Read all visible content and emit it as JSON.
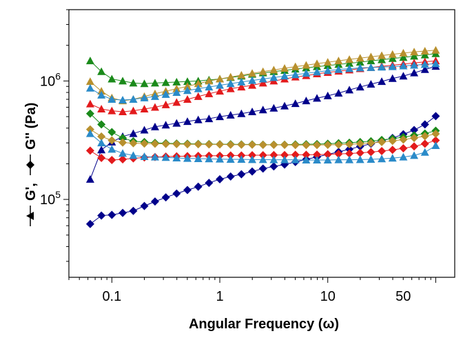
{
  "chart_data": {
    "type": "scatter",
    "xlabel": "Angular Frequency (ω)",
    "ylabel_parts": {
      "g_prime": "G',",
      "g_double_prime": "G'' (Pa)"
    },
    "x_scale": "log",
    "y_scale": "log",
    "xlim": [
      0.04,
      150
    ],
    "ylim": [
      22000,
      4000000
    ],
    "x_ticks": [
      {
        "value": 0.1,
        "label": "0.1"
      },
      {
        "value": 1,
        "label": "1"
      },
      {
        "value": 10,
        "label": "10"
      },
      {
        "value": 50,
        "label": "50"
      }
    ],
    "y_ticks": [
      {
        "value": 100000,
        "base": "10",
        "exp": "5"
      },
      {
        "value": 1000000,
        "base": "10",
        "exp": "6"
      }
    ],
    "x": [
      0.063,
      0.08,
      0.1,
      0.126,
      0.158,
      0.2,
      0.251,
      0.316,
      0.398,
      0.501,
      0.631,
      0.794,
      1.0,
      1.259,
      1.585,
      1.995,
      2.512,
      3.162,
      3.981,
      5.012,
      6.31,
      7.943,
      10.0,
      12.59,
      15.85,
      19.95,
      25.12,
      31.62,
      39.81,
      50.12,
      63.1,
      79.43,
      100.0
    ],
    "series": [
      {
        "role": "G'",
        "marker": "triangle",
        "color": "#00008b",
        "values": [
          148000,
          262000,
          305000,
          340000,
          360000,
          385000,
          410000,
          425000,
          440000,
          455000,
          470000,
          480000,
          500000,
          515000,
          530000,
          550000,
          570000,
          590000,
          615000,
          645000,
          680000,
          715000,
          750000,
          790000,
          840000,
          890000,
          940000,
          990000,
          1050000,
          1100000,
          1170000,
          1250000,
          1330000
        ]
      },
      {
        "role": "G'",
        "marker": "triangle",
        "color": "#1a8a1a",
        "values": [
          1480000,
          1200000,
          1040000,
          1000000,
          960000,
          950000,
          960000,
          970000,
          980000,
          990000,
          1000000,
          1020000,
          1040000,
          1070000,
          1100000,
          1140000,
          1170000,
          1200000,
          1230000,
          1260000,
          1290000,
          1320000,
          1350000,
          1380000,
          1410000,
          1440000,
          1480000,
          1510000,
          1550000,
          1580000,
          1620000,
          1660000,
          1700000
        ]
      },
      {
        "role": "G'",
        "marker": "triangle",
        "color": "#e31a1c",
        "values": [
          640000,
          580000,
          560000,
          550000,
          560000,
          580000,
          600000,
          630000,
          660000,
          700000,
          740000,
          780000,
          820000,
          860000,
          890000,
          920000,
          960000,
          1000000,
          1040000,
          1080000,
          1110000,
          1150000,
          1180000,
          1210000,
          1240000,
          1270000,
          1300000,
          1330000,
          1360000,
          1390000,
          1420000,
          1450000,
          1480000
        ]
      },
      {
        "role": "G'",
        "marker": "triangle",
        "color": "#b8902e",
        "values": [
          990000,
          820000,
          720000,
          680000,
          700000,
          740000,
          780000,
          820000,
          860000,
          900000,
          950000,
          1000000,
          1040000,
          1080000,
          1120000,
          1160000,
          1200000,
          1240000,
          1280000,
          1320000,
          1360000,
          1400000,
          1440000,
          1480000,
          1520000,
          1560000,
          1600000,
          1640000,
          1680000,
          1720000,
          1760000,
          1790000,
          1820000
        ]
      },
      {
        "role": "G'",
        "marker": "triangle",
        "color": "#2a8bc9",
        "values": [
          870000,
          760000,
          700000,
          690000,
          700000,
          720000,
          740000,
          770000,
          800000,
          830000,
          860000,
          890000,
          920000,
          950000,
          980000,
          1010000,
          1040000,
          1070000,
          1100000,
          1130000,
          1160000,
          1190000,
          1220000,
          1250000,
          1270000,
          1290000,
          1300000,
          1310000,
          1320000,
          1340000,
          1360000,
          1380000,
          1400000
        ]
      },
      {
        "role": "G''",
        "marker": "diamond",
        "color": "#00008b",
        "values": [
          62000,
          73000,
          74000,
          77000,
          80000,
          88000,
          96000,
          104000,
          112000,
          120000,
          128000,
          138000,
          148000,
          156000,
          163000,
          172000,
          182000,
          190000,
          197000,
          207000,
          218000,
          228000,
          240000,
          252000,
          265000,
          280000,
          295000,
          312000,
          330000,
          355000,
          385000,
          430000,
          505000
        ]
      },
      {
        "role": "G''",
        "marker": "diamond",
        "color": "#1a8a1a",
        "values": [
          530000,
          430000,
          370000,
          330000,
          310000,
          305000,
          300000,
          298000,
          296000,
          295000,
          294000,
          293000,
          292000,
          292000,
          291000,
          291000,
          290000,
          290000,
          290000,
          291000,
          292000,
          293000,
          295000,
          298000,
          301000,
          305000,
          310000,
          318000,
          326000,
          336000,
          347000,
          360000,
          380000
        ]
      },
      {
        "role": "G''",
        "marker": "diamond",
        "color": "#e31a1c",
        "values": [
          258000,
          224000,
          215000,
          218000,
          222000,
          226000,
          228000,
          230000,
          231000,
          232000,
          233000,
          234000,
          234000,
          235000,
          235000,
          236000,
          236000,
          237000,
          237000,
          238000,
          238000,
          239000,
          240000,
          242000,
          244000,
          247000,
          251000,
          256000,
          262000,
          270000,
          280000,
          295000,
          315000
        ]
      },
      {
        "role": "G''",
        "marker": "diamond",
        "color": "#b8902e",
        "values": [
          390000,
          340000,
          315000,
          302000,
          298000,
          296000,
          295000,
          294000,
          293000,
          292000,
          292000,
          291000,
          291000,
          290000,
          290000,
          290000,
          289000,
          289000,
          289000,
          288000,
          288000,
          288000,
          289000,
          290000,
          292000,
          295000,
          299000,
          305000,
          312000,
          320000,
          330000,
          342000,
          358000
        ]
      },
      {
        "role": "G''",
        "marker": "triangle",
        "color": "#2a8bc9",
        "values": [
          360000,
          300000,
          265000,
          245000,
          235000,
          230000,
          228000,
          226000,
          224000,
          222000,
          221000,
          220000,
          219000,
          218000,
          218000,
          217000,
          217000,
          216000,
          216000,
          216000,
          215000,
          215000,
          215000,
          216000,
          216000,
          217000,
          218000,
          220000,
          223000,
          228000,
          235000,
          250000,
          285000
        ]
      }
    ],
    "legend": "inline on y-axis title",
    "grid": false
  }
}
